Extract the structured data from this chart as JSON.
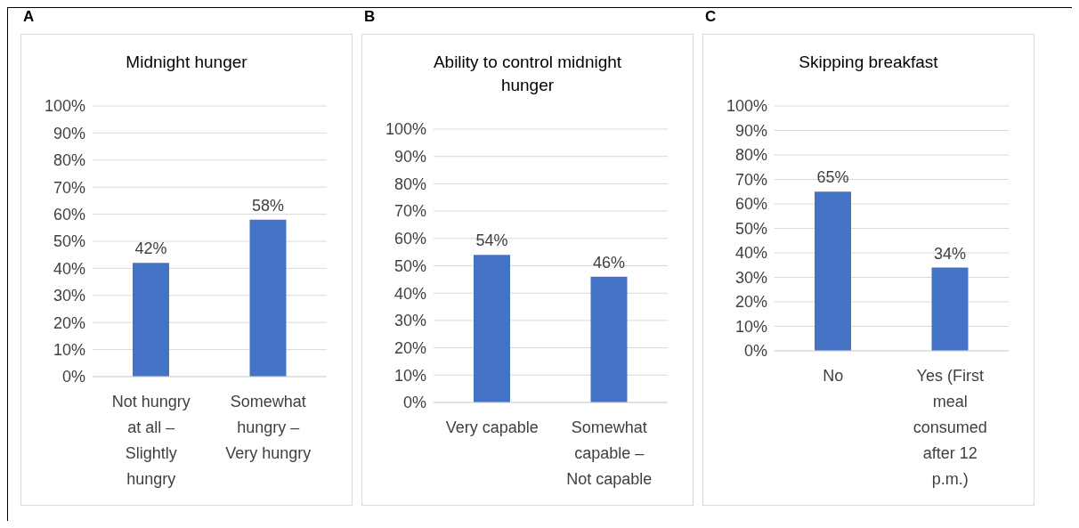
{
  "chart_data": [
    {
      "type": "bar",
      "title": "Midnight hunger",
      "annotations": [
        "A"
      ],
      "categories": [
        "Not hungry at all – Slightly hungry",
        "Somewhat hungry – Very hungry"
      ],
      "values": [
        42,
        58
      ],
      "value_labels": [
        "42%",
        "58%"
      ],
      "color": "#4472c4",
      "ylim": [
        0,
        100
      ],
      "yticks": [
        {
          "value": 0,
          "label": "0%"
        },
        {
          "value": 10,
          "label": "10%"
        },
        {
          "value": 20,
          "label": "20%"
        },
        {
          "value": 30,
          "label": "30%"
        },
        {
          "value": 40,
          "label": "40%"
        },
        {
          "value": 50,
          "label": "50%"
        },
        {
          "value": 60,
          "label": "60%"
        },
        {
          "value": 70,
          "label": "70%"
        },
        {
          "value": 80,
          "label": "80%"
        },
        {
          "value": 90,
          "label": "90%"
        },
        {
          "value": 100,
          "label": "100%"
        }
      ],
      "grid": "y"
    },
    {
      "type": "bar",
      "title": "Ability to control midnight hunger",
      "annotations": [
        "B"
      ],
      "categories": [
        "Very capable",
        "Somewhat capable – Not capable"
      ],
      "values": [
        54,
        46
      ],
      "value_labels": [
        "54%",
        "46%"
      ],
      "color": "#4472c4",
      "ylim": [
        0,
        100
      ],
      "yticks": [
        {
          "value": 0,
          "label": "0%"
        },
        {
          "value": 10,
          "label": "10%"
        },
        {
          "value": 20,
          "label": "20%"
        },
        {
          "value": 30,
          "label": "30%"
        },
        {
          "value": 40,
          "label": "40%"
        },
        {
          "value": 50,
          "label": "50%"
        },
        {
          "value": 60,
          "label": "60%"
        },
        {
          "value": 70,
          "label": "70%"
        },
        {
          "value": 80,
          "label": "80%"
        },
        {
          "value": 90,
          "label": "90%"
        },
        {
          "value": 100,
          "label": "100%"
        }
      ],
      "grid": "y"
    },
    {
      "type": "bar",
      "title": "Skipping breakfast",
      "annotations": [
        "C"
      ],
      "categories": [
        "No",
        "Yes (First meal consumed after 12 p.m.)"
      ],
      "values": [
        65,
        34
      ],
      "value_labels": [
        "65%",
        "34%"
      ],
      "color": "#4472c4",
      "ylim": [
        0,
        100
      ],
      "yticks": [
        {
          "value": 0,
          "label": "0%"
        },
        {
          "value": 10,
          "label": "10%"
        },
        {
          "value": 20,
          "label": "20%"
        },
        {
          "value": 30,
          "label": "30%"
        },
        {
          "value": 40,
          "label": "40%"
        },
        {
          "value": 50,
          "label": "50%"
        },
        {
          "value": 60,
          "label": "60%"
        },
        {
          "value": 70,
          "label": "70%"
        },
        {
          "value": 80,
          "label": "80%"
        },
        {
          "value": 90,
          "label": "90%"
        },
        {
          "value": 100,
          "label": "100%"
        }
      ],
      "grid": "y"
    }
  ]
}
